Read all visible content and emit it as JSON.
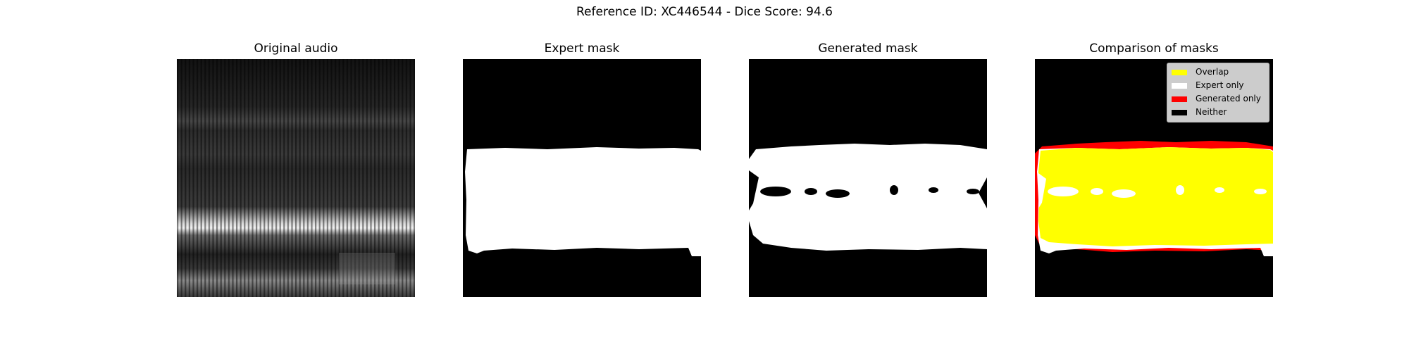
{
  "suptitle": "Reference ID: XC446544 - Dice Score: 94.6",
  "panels": [
    {
      "title": "Original audio"
    },
    {
      "title": "Expert mask"
    },
    {
      "title": "Generated mask"
    },
    {
      "title": "Comparison of masks"
    }
  ],
  "legend": {
    "items": [
      {
        "label": "Overlap",
        "color": "#ffff00"
      },
      {
        "label": "Expert only",
        "color": "#ffffff"
      },
      {
        "label": "Generated only",
        "color": "#ff0000"
      },
      {
        "label": "Neither",
        "color": "#000000"
      }
    ]
  },
  "colors": {
    "overlap": "#ffff00",
    "expert_only": "#ffffff",
    "generated_only": "#ff0000",
    "neither": "#000000"
  }
}
